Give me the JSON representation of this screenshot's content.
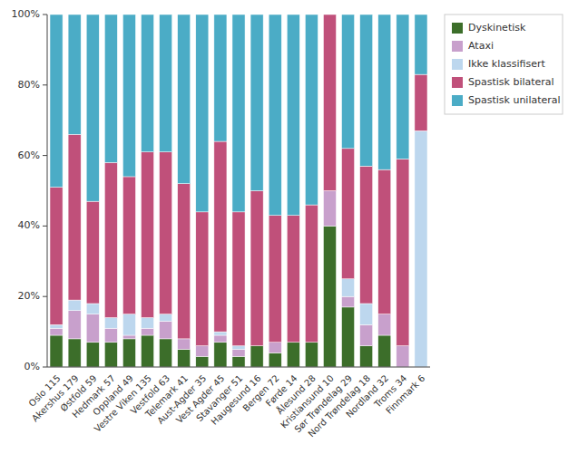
{
  "chart_data": {
    "type": "bar",
    "stacked": true,
    "categories": [
      "Oslo 115",
      "Akershus 179",
      "Østfold 59",
      "Hedmark 57",
      "Oppland 49",
      "Vestre Viken 135",
      "Vestfold 63",
      "Telemark 41",
      "Aust-Agder 35",
      "Vest Agder 45",
      "Stavanger 51",
      "Haugesund 16",
      "Bergen 72",
      "Førde 14",
      "Ålesund 28",
      "Kristiansund 10",
      "Sør Trøndelag 29",
      "Nord Trøndelag 18",
      "Nordland 32",
      "Troms 34",
      "Finnmark 6"
    ],
    "series": [
      {
        "name": "Dyskinetisk",
        "color": "#3C6E2A",
        "values": [
          9,
          8,
          7,
          7,
          8,
          9,
          8,
          5,
          3,
          7,
          3,
          6,
          4,
          7,
          7,
          40,
          17,
          6,
          9,
          0,
          0
        ]
      },
      {
        "name": "Ataxi",
        "color": "#C8A0CC",
        "values": [
          2,
          8,
          8,
          4,
          1,
          2,
          5,
          3,
          3,
          2,
          2,
          0,
          3,
          0,
          0,
          10,
          3,
          6,
          6,
          6,
          0
        ]
      },
      {
        "name": "Ikke klassifisert",
        "color": "#BDD7EE",
        "values": [
          1,
          3,
          3,
          3,
          6,
          3,
          2,
          0,
          0,
          1,
          1,
          0,
          0,
          0,
          0,
          0,
          5,
          6,
          0,
          0,
          67
        ]
      },
      {
        "name": "Spastisk bilateral",
        "color": "#C0507A",
        "values": [
          39,
          47,
          29,
          44,
          39,
          47,
          46,
          44,
          38,
          54,
          38,
          44,
          36,
          36,
          39,
          50,
          37,
          39,
          41,
          53,
          16
        ]
      },
      {
        "name": "Spastisk unilateral",
        "color": "#4BACC6",
        "values": [
          49,
          34,
          53,
          42,
          46,
          39,
          39,
          48,
          56,
          36,
          56,
          50,
          57,
          57,
          54,
          0,
          38,
          43,
          44,
          41,
          17
        ]
      }
    ],
    "ylim": [
      0,
      100
    ],
    "yticks": [
      {
        "value": 0,
        "label": "0%"
      },
      {
        "value": 20,
        "label": "20%"
      },
      {
        "value": 40,
        "label": "40%"
      },
      {
        "value": 60,
        "label": "60%"
      },
      {
        "value": 80,
        "label": "80%"
      },
      {
        "value": 100,
        "label": "100%"
      }
    ],
    "grid": false,
    "legend": "right"
  }
}
